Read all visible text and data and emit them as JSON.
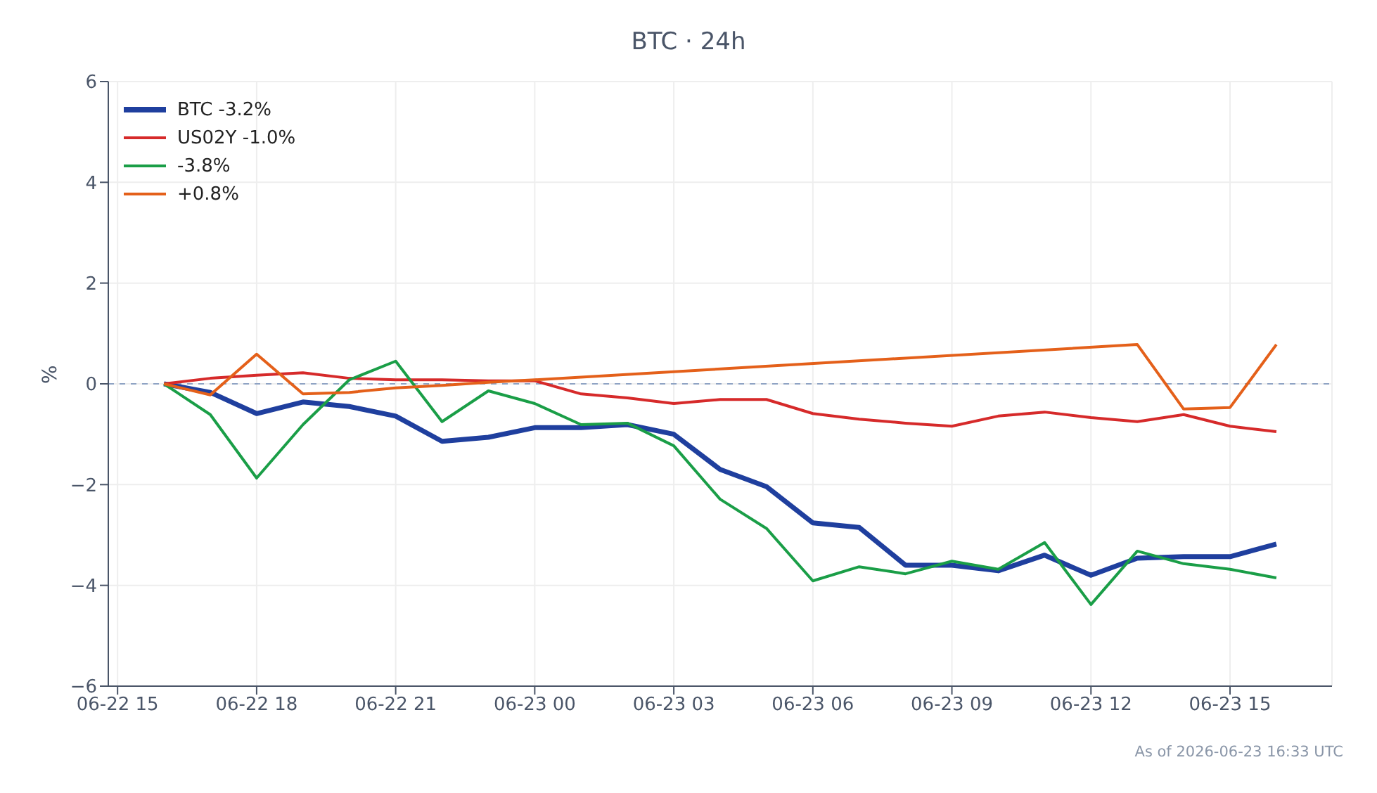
{
  "chart_data": {
    "type": "line",
    "title": "BTC · 24h",
    "ylabel": "%",
    "x": [
      "2026-06-22T16:00",
      "2026-06-22T17:00",
      "2026-06-22T18:00",
      "2026-06-22T19:00",
      "2026-06-22T20:00",
      "2026-06-22T21:00",
      "2026-06-22T22:00",
      "2026-06-22T23:00",
      "2026-06-23T00:00",
      "2026-06-23T01:00",
      "2026-06-23T02:00",
      "2026-06-23T03:00",
      "2026-06-23T04:00",
      "2026-06-23T05:00",
      "2026-06-23T06:00",
      "2026-06-23T07:00",
      "2026-06-23T08:00",
      "2026-06-23T09:00",
      "2026-06-23T10:00",
      "2026-06-23T11:00",
      "2026-06-23T12:00",
      "2026-06-23T13:00",
      "2026-06-23T14:00",
      "2026-06-23T15:00",
      "2026-06-23T16:00"
    ],
    "series": [
      {
        "name": "BTC -3.2%",
        "color": "#1f3f9e",
        "values": [
          0,
          -0.17,
          -0.59,
          -0.36,
          -0.45,
          -0.64,
          -1.14,
          -1.06,
          -0.87,
          -0.87,
          -0.81,
          -1.0,
          -1.7,
          -2.04,
          -2.76,
          -2.85,
          -3.6,
          -3.6,
          -3.71,
          -3.4,
          -3.8,
          -3.46,
          -3.43,
          -3.43,
          -3.18
        ]
      },
      {
        "name": "US02Y -1.0%",
        "color": "#d62a2a",
        "values": [
          0,
          0.11,
          0.17,
          0.22,
          0.11,
          0.08,
          0.08,
          0.06,
          0.06,
          -0.2,
          -0.28,
          -0.39,
          -0.31,
          -0.31,
          -0.59,
          -0.7,
          -0.78,
          -0.84,
          -0.64,
          -0.56,
          -0.67,
          -0.75,
          -0.61,
          -0.84,
          -0.95
        ]
      },
      {
        "name": "-3.8%",
        "color": "#1a9e47",
        "values": [
          0,
          -0.61,
          -1.87,
          -0.81,
          0.08,
          0.45,
          -0.75,
          -0.14,
          -0.39,
          -0.81,
          -0.78,
          -1.23,
          -2.29,
          -2.87,
          -3.91,
          -3.63,
          -3.77,
          -3.52,
          -3.68,
          -3.15,
          -4.38,
          -3.32,
          -3.57,
          -3.68,
          -3.85
        ]
      },
      {
        "name": "+0.8%",
        "color": "#e4601a",
        "x": [
          "2026-06-22T16:00",
          "2026-06-22T17:00",
          "2026-06-22T18:00",
          "2026-06-22T19:00",
          "2026-06-22T20:00",
          "2026-06-22T21:00",
          "2026-06-22T22:00",
          "2026-06-22T23:00",
          "2026-06-23T00:00",
          "2026-06-23T13:00",
          "2026-06-23T14:00",
          "2026-06-23T15:00",
          "2026-06-23T16:00"
        ],
        "values": [
          0,
          -0.22,
          0.59,
          -0.2,
          -0.17,
          -0.08,
          -0.03,
          0.03,
          0.08,
          0.78,
          -0.5,
          -0.47,
          0.78
        ]
      }
    ],
    "xlim": [
      "2026-06-22T14:48",
      "2026-06-23T17:12"
    ],
    "xticks": [
      {
        "value": "2026-06-22T15:00",
        "label": "06-22 15"
      },
      {
        "value": "2026-06-22T18:00",
        "label": "06-22 18"
      },
      {
        "value": "2026-06-22T21:00",
        "label": "06-22 21"
      },
      {
        "value": "2026-06-23T00:00",
        "label": "06-23 00"
      },
      {
        "value": "2026-06-23T03:00",
        "label": "06-23 03"
      },
      {
        "value": "2026-06-23T06:00",
        "label": "06-23 06"
      },
      {
        "value": "2026-06-23T09:00",
        "label": "06-23 09"
      },
      {
        "value": "2026-06-23T12:00",
        "label": "06-23 12"
      },
      {
        "value": "2026-06-23T15:00",
        "label": "06-23 15"
      }
    ],
    "ylim": [
      -6,
      6
    ],
    "yticks": [
      -6,
      -4,
      -2,
      0,
      2,
      4,
      6
    ],
    "ref_lines": [
      {
        "axis": "y",
        "value": 0,
        "color": "#8fa3c4",
        "line_style": "dashed"
      }
    ],
    "annotations": [
      "As of 2026-06-23 16:33 UTC"
    ],
    "grid": true,
    "legend": "top left",
    "marker": "none",
    "line_style": "solid"
  }
}
